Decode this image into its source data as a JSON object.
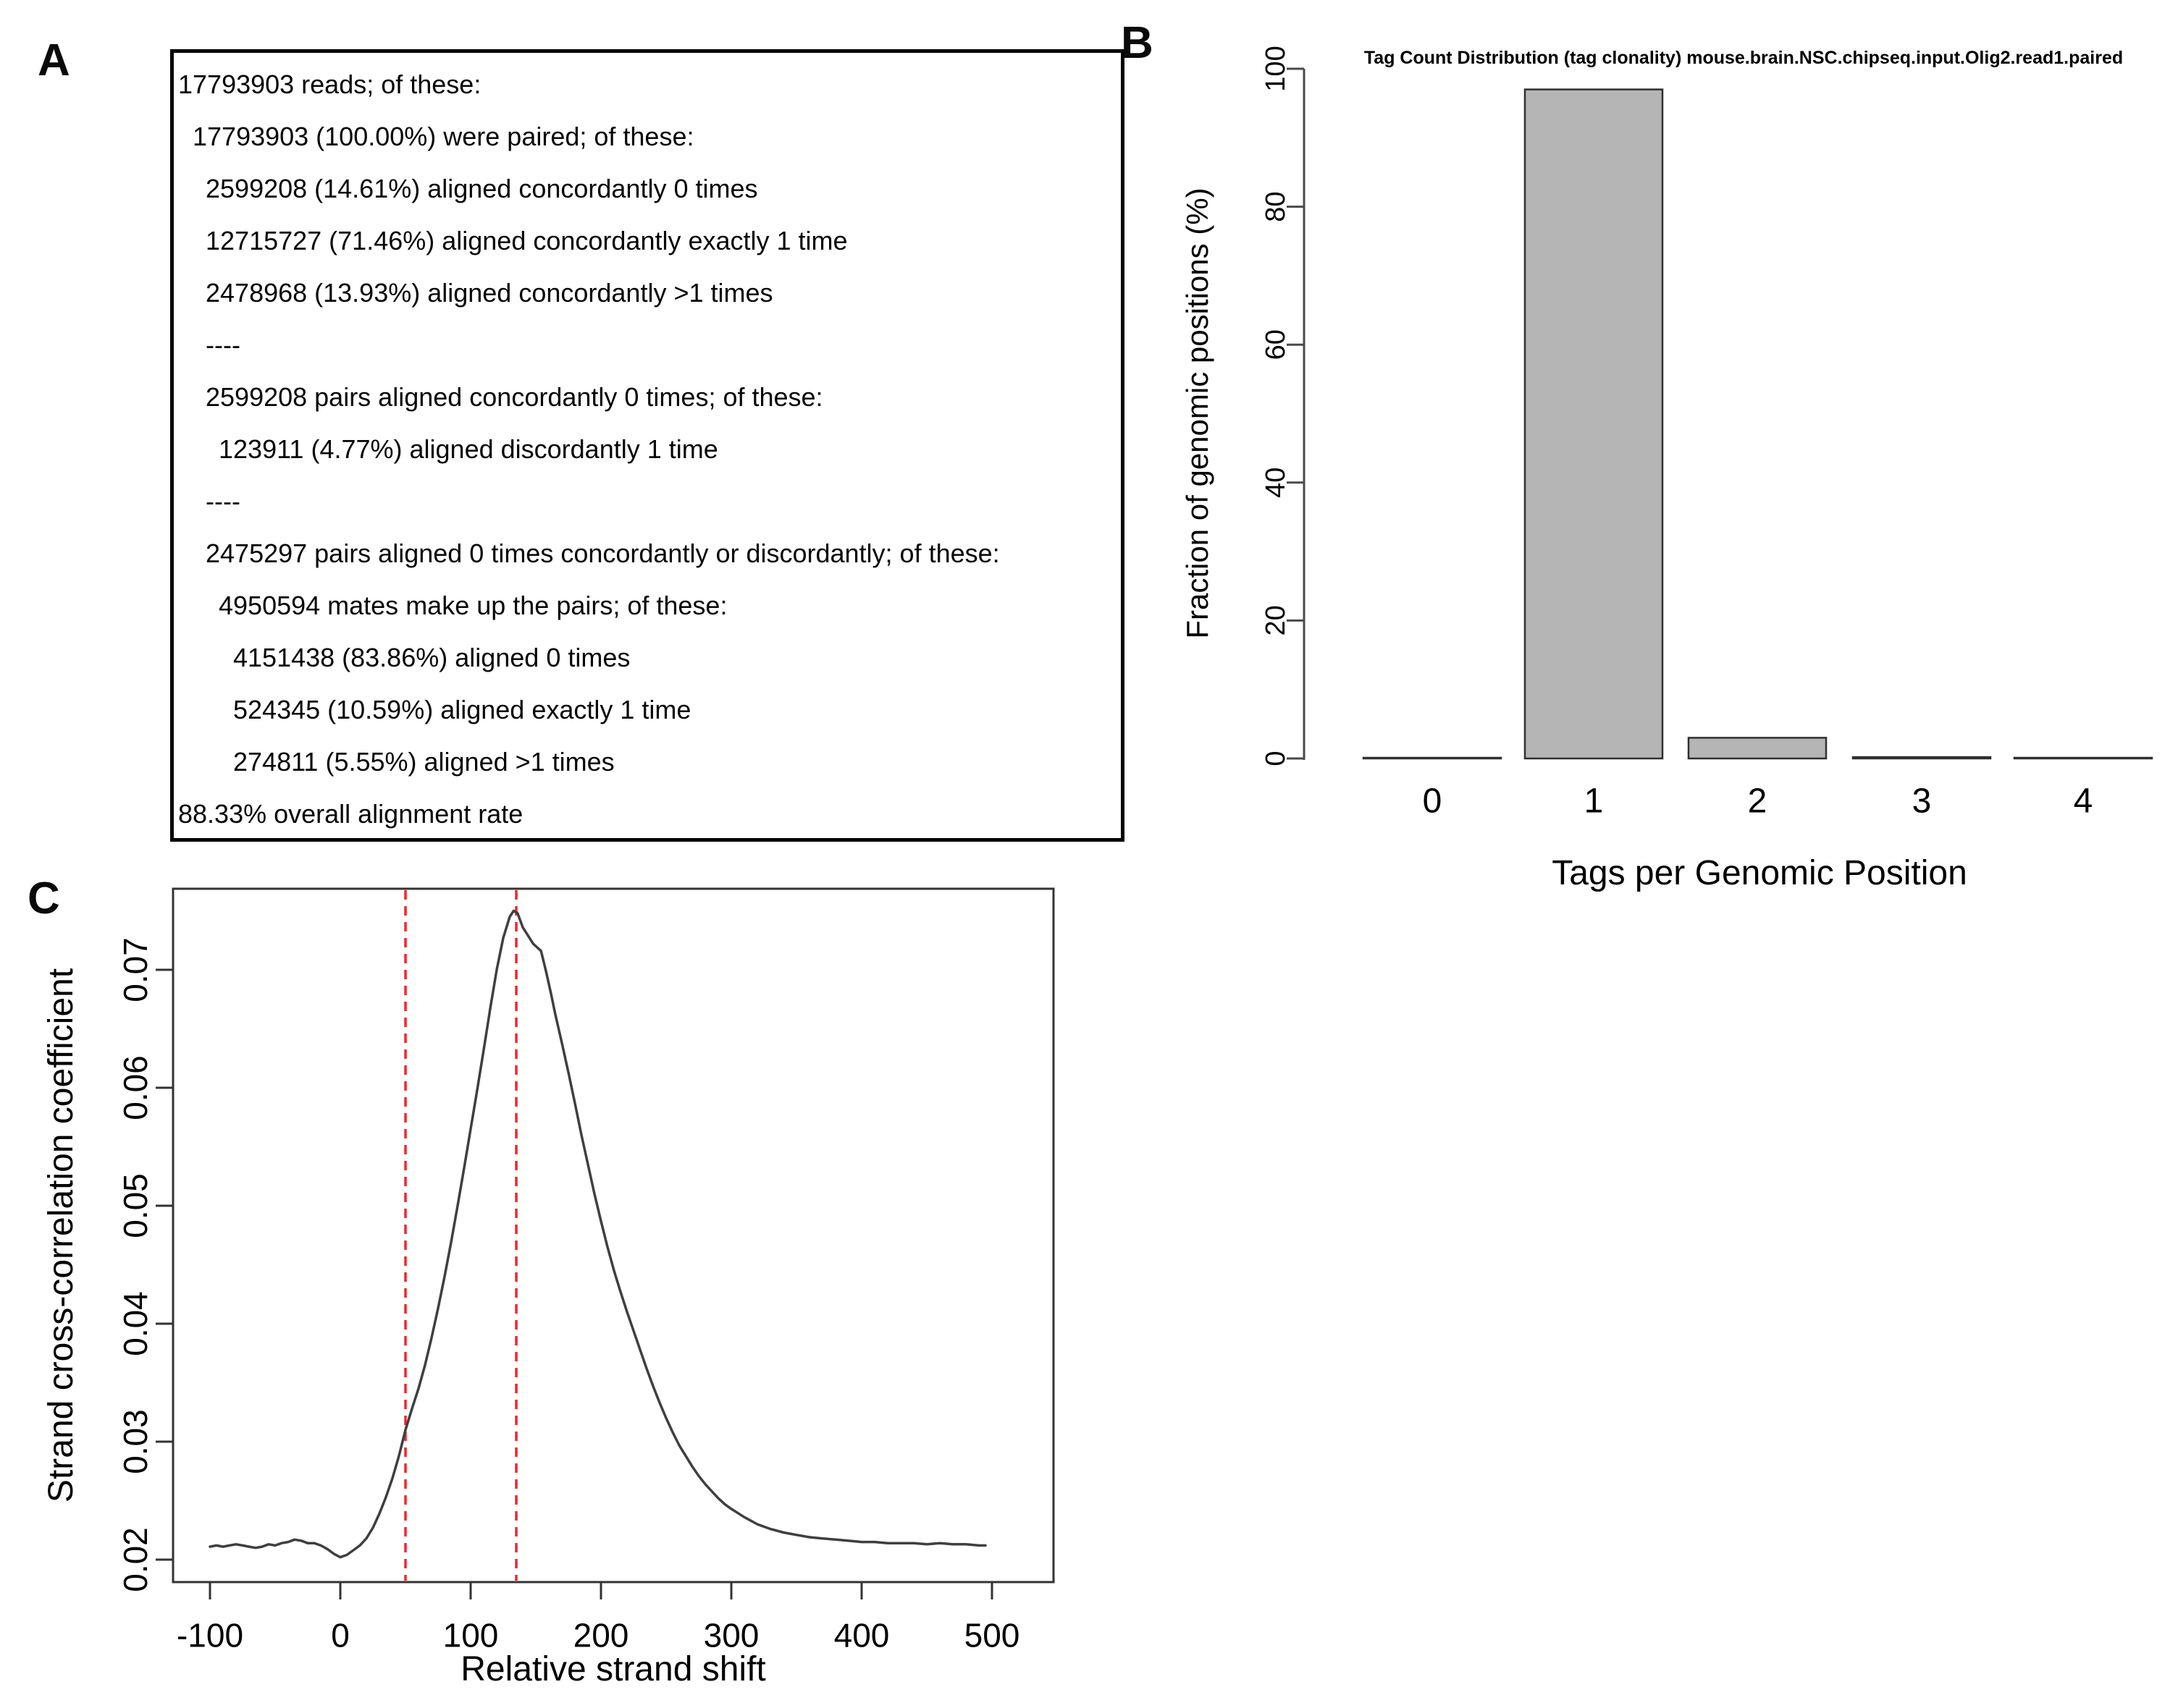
{
  "panel_labels": {
    "a": "A",
    "b": "B",
    "c": "C"
  },
  "panel_a": {
    "lines": [
      {
        "indent": 0,
        "text": "17793903 reads; of these:"
      },
      {
        "indent": 1,
        "text": "17793903 (100.00%) were paired; of these:"
      },
      {
        "indent": 2,
        "text": "2599208 (14.61%) aligned concordantly 0 times"
      },
      {
        "indent": 2,
        "text": "12715727 (71.46%) aligned concordantly exactly 1 time"
      },
      {
        "indent": 2,
        "text": "2478968 (13.93%) aligned concordantly >1 times"
      },
      {
        "indent": 2,
        "text": "----"
      },
      {
        "indent": 2,
        "text": "2599208 pairs aligned concordantly 0 times; of these:"
      },
      {
        "indent": 3,
        "text": "123911 (4.77%) aligned discordantly 1 time"
      },
      {
        "indent": 2,
        "text": "----"
      },
      {
        "indent": 2,
        "text": "2475297 pairs aligned 0 times concordantly or discordantly; of these:"
      },
      {
        "indent": 3,
        "text": "4950594 mates make up the pairs; of these:"
      },
      {
        "indent": 4,
        "text": "4151438 (83.86%) aligned 0 times"
      },
      {
        "indent": 4,
        "text": "524345 (10.59%) aligned exactly 1 time"
      },
      {
        "indent": 4,
        "text": "274811 (5.55%) aligned >1 times"
      },
      {
        "indent": 0,
        "text": "88.33% overall alignment rate"
      }
    ]
  },
  "chart_data": [
    {
      "id": "tag-count-bar-chart",
      "type": "bar",
      "title": "Tag Count Distribution (tag clonality) mouse.brain.NSC.chipseq.input.Olig2.read1.paired",
      "xlabel": "Tags per Genomic Position",
      "ylabel": "Fraction of genomic positions (%)",
      "categories": [
        "0",
        "1",
        "2",
        "3",
        "4"
      ],
      "values": [
        0.05,
        97,
        3.0,
        0.2,
        0.05
      ],
      "yticks": [
        0,
        20,
        40,
        60,
        80,
        100
      ],
      "ylim": [
        0,
        100
      ],
      "grid": false,
      "legend": "none",
      "bar_fill": "#b5b5b5",
      "bar_stroke": "#2f2f2f",
      "axis_color": "#4a4a4a"
    },
    {
      "id": "cross-correlation-line-chart",
      "type": "line",
      "title": "",
      "xlabel": "Relative strand shift",
      "ylabel": "Strand cross-correlation coefficient",
      "xticks": [
        -100,
        0,
        100,
        200,
        300,
        400,
        500
      ],
      "yticks": [
        0.02,
        0.03,
        0.04,
        0.05,
        0.06,
        0.07
      ],
      "xlim": [
        -128,
        547
      ],
      "ylim": [
        0.0181,
        0.0769
      ],
      "grid": false,
      "legend": "none",
      "line_color": "#3f3f3f",
      "box_color": "#333333",
      "vlines": {
        "x": [
          50,
          135
        ],
        "color": "#f2252a",
        "style": "dashed"
      },
      "series": [
        {
          "name": "strand cross-correlation",
          "x": [
            -100,
            -95,
            -90,
            -85,
            -80,
            -75,
            -70,
            -65,
            -60,
            -55,
            -50,
            -45,
            -40,
            -35,
            -30,
            -25,
            -20,
            -15,
            -10,
            -5,
            0,
            5,
            10,
            15,
            20,
            25,
            30,
            35,
            40,
            45,
            50,
            55,
            60,
            65,
            70,
            75,
            80,
            85,
            90,
            95,
            100,
            105,
            110,
            115,
            120,
            125,
            130,
            133,
            136,
            140,
            144,
            148,
            151,
            154,
            158,
            162,
            165,
            170,
            175,
            180,
            185,
            190,
            195,
            200,
            205,
            210,
            215,
            220,
            225,
            230,
            235,
            240,
            245,
            250,
            255,
            260,
            265,
            270,
            275,
            280,
            285,
            290,
            295,
            300,
            310,
            320,
            330,
            340,
            350,
            360,
            370,
            380,
            390,
            400,
            410,
            420,
            430,
            440,
            450,
            460,
            470,
            480,
            490,
            495
          ],
          "y": [
            0.0211,
            0.0212,
            0.0211,
            0.0212,
            0.0213,
            0.0212,
            0.0211,
            0.021,
            0.0211,
            0.0213,
            0.0212,
            0.0214,
            0.0215,
            0.0217,
            0.0216,
            0.0214,
            0.0214,
            0.0212,
            0.0209,
            0.0205,
            0.0202,
            0.0204,
            0.0208,
            0.0212,
            0.0218,
            0.0227,
            0.0239,
            0.0253,
            0.0269,
            0.0288,
            0.031,
            0.0328,
            0.0345,
            0.0365,
            0.0388,
            0.0413,
            0.044,
            0.0469,
            0.05,
            0.0532,
            0.0565,
            0.0598,
            0.0632,
            0.0667,
            0.07,
            0.0727,
            0.0745,
            0.075,
            0.0748,
            0.0736,
            0.0729,
            0.0722,
            0.0719,
            0.0716,
            0.0698,
            0.0678,
            0.0662,
            0.0638,
            0.0613,
            0.0587,
            0.056,
            0.0535,
            0.051,
            0.0487,
            0.0465,
            0.0445,
            0.0427,
            0.041,
            0.0394,
            0.0378,
            0.0362,
            0.0347,
            0.0333,
            0.032,
            0.0308,
            0.0297,
            0.0288,
            0.0279,
            0.0271,
            0.0264,
            0.0258,
            0.0252,
            0.0247,
            0.0243,
            0.0236,
            0.023,
            0.0226,
            0.0223,
            0.0221,
            0.0219,
            0.0218,
            0.0217,
            0.0216,
            0.0215,
            0.0215,
            0.0214,
            0.0214,
            0.0214,
            0.0213,
            0.0214,
            0.0213,
            0.0213,
            0.0212,
            0.0212
          ]
        }
      ]
    }
  ]
}
